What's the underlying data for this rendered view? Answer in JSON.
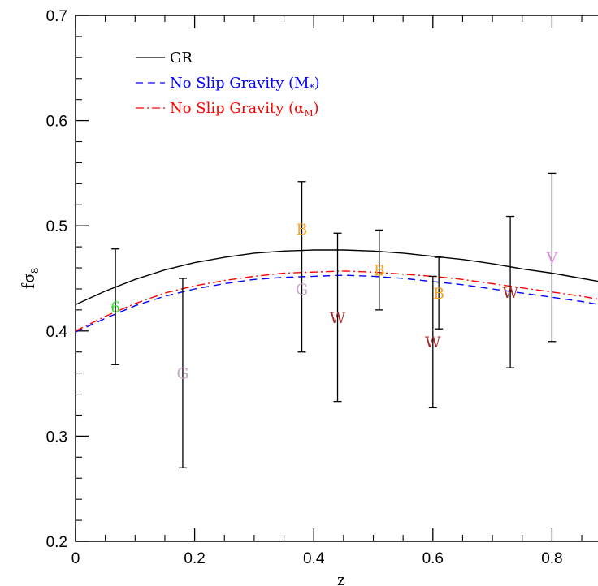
{
  "chart_data": {
    "type": "line",
    "xlabel": "z",
    "ylabel_main": "fσ",
    "ylabel_sub": "8",
    "xlim": [
      0,
      0.9
    ],
    "ylim": [
      0.2,
      0.7
    ],
    "xticks": [
      0,
      0.2,
      0.4,
      0.6,
      0.8
    ],
    "xtick_labels": [
      "0",
      "0.2",
      "0.4",
      "0.6",
      "0.8"
    ],
    "yticks": [
      0.2,
      0.3,
      0.4,
      0.5,
      0.6,
      0.7
    ],
    "ytick_labels": [
      "0.2",
      "0.3",
      "0.4",
      "0.5",
      "0.6",
      "0.7"
    ],
    "legend_position": "top-left",
    "grid": false,
    "series": [
      {
        "name": "GR",
        "style": "solid",
        "color": "#000000",
        "x": [
          0,
          0.05,
          0.1,
          0.15,
          0.2,
          0.25,
          0.3,
          0.35,
          0.4,
          0.45,
          0.5,
          0.55,
          0.6,
          0.65,
          0.7,
          0.75,
          0.8,
          0.85,
          0.9
        ],
        "y": [
          0.425,
          0.438,
          0.449,
          0.458,
          0.465,
          0.47,
          0.474,
          0.476,
          0.477,
          0.477,
          0.476,
          0.474,
          0.471,
          0.468,
          0.464,
          0.459,
          0.455,
          0.45,
          0.445
        ]
      },
      {
        "name": "No Slip Gravity (M",
        "name_sub": "*",
        "name_tail": ")",
        "style": "dashed",
        "color": "#0000ff",
        "x": [
          0,
          0.05,
          0.1,
          0.15,
          0.2,
          0.25,
          0.3,
          0.35,
          0.4,
          0.45,
          0.5,
          0.55,
          0.6,
          0.65,
          0.7,
          0.75,
          0.8,
          0.85,
          0.9
        ],
        "y": [
          0.399,
          0.412,
          0.424,
          0.433,
          0.44,
          0.445,
          0.449,
          0.451,
          0.452,
          0.453,
          0.452,
          0.45,
          0.447,
          0.444,
          0.44,
          0.436,
          0.432,
          0.428,
          0.423
        ]
      },
      {
        "name": "No Slip Gravity (α",
        "name_sub": "M",
        "name_tail": ")",
        "style": "dashdot",
        "color": "#ff0000",
        "x": [
          0,
          0.05,
          0.1,
          0.15,
          0.2,
          0.25,
          0.3,
          0.35,
          0.4,
          0.45,
          0.5,
          0.55,
          0.6,
          0.65,
          0.7,
          0.75,
          0.8,
          0.85,
          0.9
        ],
        "y": [
          0.4,
          0.414,
          0.426,
          0.436,
          0.443,
          0.448,
          0.452,
          0.455,
          0.456,
          0.457,
          0.456,
          0.454,
          0.452,
          0.449,
          0.445,
          0.441,
          0.437,
          0.433,
          0.428
        ]
      }
    ],
    "points": [
      {
        "label": "6",
        "x": 0.067,
        "y": 0.423,
        "yerr_low": 0.368,
        "yerr_high": 0.478,
        "color": "#33dd33"
      },
      {
        "label": "G",
        "x": 0.18,
        "y": 0.36,
        "yerr_low": 0.27,
        "yerr_high": 0.45,
        "color": "#c9a9cc"
      },
      {
        "label": "G",
        "x": 0.38,
        "y": 0.44,
        "color": "#c9a9cc"
      },
      {
        "label": "B",
        "x": 0.38,
        "y": 0.497,
        "yerr_low": 0.38,
        "yerr_high": 0.542,
        "color": "#f5a623"
      },
      {
        "label": "W",
        "x": 0.44,
        "y": 0.413,
        "yerr_low": 0.333,
        "yerr_high": 0.493,
        "color": "#a52a2a"
      },
      {
        "label": "B",
        "x": 0.51,
        "y": 0.458,
        "yerr_low": 0.42,
        "yerr_high": 0.496,
        "color": "#f5a623"
      },
      {
        "label": "W",
        "x": 0.6,
        "y": 0.39,
        "yerr_low": 0.327,
        "yerr_high": 0.452,
        "color": "#a52a2a"
      },
      {
        "label": "B",
        "x": 0.61,
        "y": 0.436,
        "yerr_low": 0.402,
        "yerr_high": 0.47,
        "color": "#f5a623"
      },
      {
        "label": "W",
        "x": 0.73,
        "y": 0.437,
        "yerr_low": 0.365,
        "yerr_high": 0.509,
        "color": "#a52a2a"
      },
      {
        "label": "V",
        "x": 0.8,
        "y": 0.47,
        "yerr_low": 0.39,
        "yerr_high": 0.55,
        "color": "#dd88dd"
      }
    ]
  }
}
